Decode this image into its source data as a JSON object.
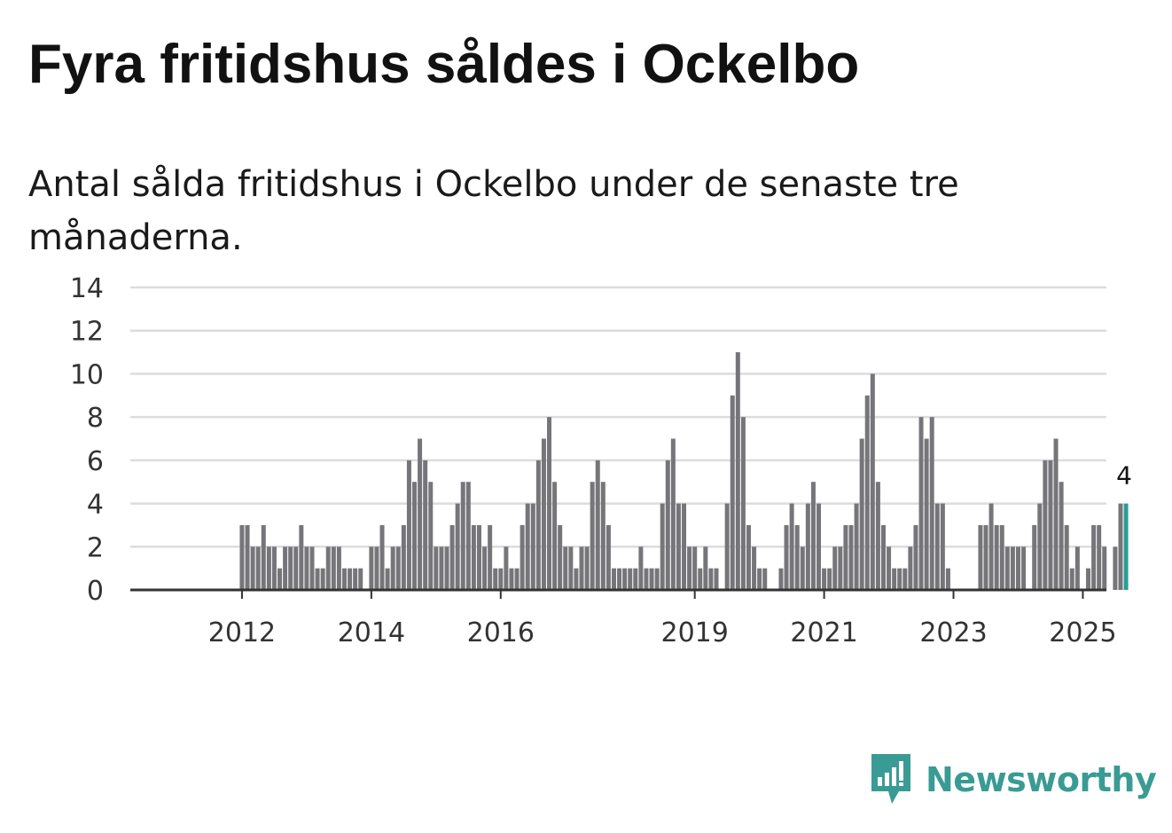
{
  "header": {
    "title": "Fyra fritidshus såldes i Ockelbo",
    "subtitle": "Antal sålda fritidshus i Ockelbo under de senaste tre månaderna."
  },
  "brand": {
    "name": "Newsworthy",
    "color": "#3a9b94"
  },
  "colors": {
    "bar": "#76757a",
    "highlight": "#2a9d95",
    "grid": "#dcdcdc",
    "axis": "#333333"
  },
  "chart_data": {
    "type": "bar",
    "title": "Fyra fritidshus såldes i Ockelbo",
    "xlabel": "",
    "ylabel": "",
    "ylim": [
      0,
      14
    ],
    "yticks": [
      0,
      2,
      4,
      6,
      8,
      10,
      12,
      14
    ],
    "grid": true,
    "x_start": "2011-01",
    "interval": "month",
    "x_ticks": [
      {
        "label": "2012",
        "index": 12
      },
      {
        "label": "2014",
        "index": 36
      },
      {
        "label": "2016",
        "index": 60
      },
      {
        "label": "2019",
        "index": 96
      },
      {
        "label": "2021",
        "index": 120
      },
      {
        "label": "2023",
        "index": 144
      },
      {
        "label": "2025",
        "index": 168
      }
    ],
    "values": [
      0,
      0,
      0,
      0,
      0,
      0,
      0,
      0,
      0,
      0,
      0,
      0,
      3,
      3,
      2,
      2,
      3,
      2,
      2,
      1,
      2,
      2,
      2,
      3,
      2,
      2,
      1,
      1,
      2,
      2,
      2,
      1,
      1,
      1,
      1,
      0,
      2,
      2,
      3,
      1,
      2,
      2,
      3,
      6,
      5,
      7,
      6,
      5,
      2,
      2,
      2,
      3,
      4,
      5,
      5,
      3,
      3,
      2,
      3,
      1,
      1,
      2,
      1,
      1,
      3,
      4,
      4,
      6,
      7,
      8,
      5,
      3,
      2,
      2,
      1,
      2,
      2,
      5,
      6,
      5,
      3,
      1,
      1,
      1,
      1,
      1,
      2,
      1,
      1,
      1,
      4,
      6,
      7,
      4,
      4,
      2,
      2,
      1,
      2,
      1,
      1,
      0,
      4,
      9,
      11,
      8,
      3,
      2,
      1,
      1,
      0,
      0,
      1,
      3,
      4,
      3,
      2,
      4,
      5,
      4,
      1,
      1,
      2,
      2,
      3,
      3,
      4,
      7,
      9,
      10,
      5,
      3,
      2,
      1,
      1,
      1,
      2,
      3,
      8,
      7,
      8,
      4,
      4,
      1,
      0,
      0,
      0,
      0,
      0,
      3,
      3,
      4,
      3,
      3,
      2,
      2,
      2,
      2,
      0,
      3,
      4,
      6,
      6,
      7,
      5,
      3,
      1,
      2,
      0,
      1,
      3,
      3,
      2,
      0,
      2,
      4,
      4
    ],
    "highlight_index": 176,
    "highlight_label": "4"
  }
}
